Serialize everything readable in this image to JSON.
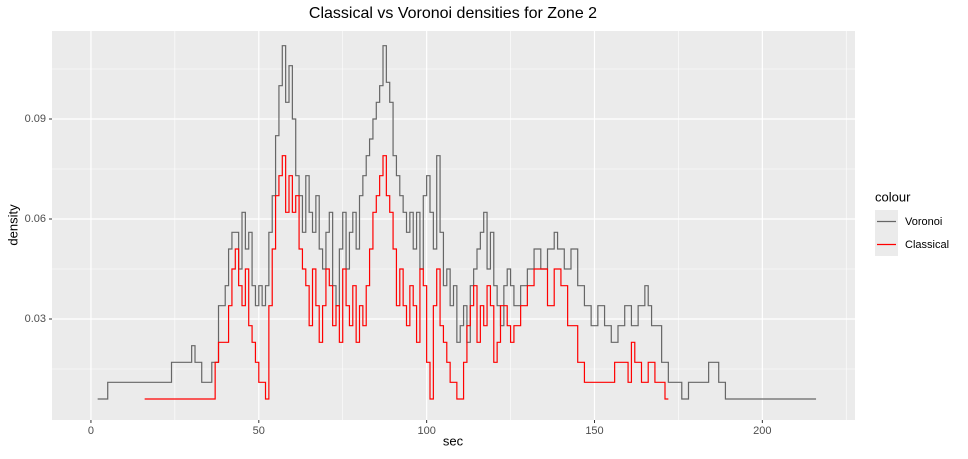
{
  "chart_data": {
    "type": "step",
    "title": "Classical vs Voronoi densities for Zone 2",
    "x_label": "sec",
    "y_label": "density",
    "legend_title": "colour",
    "legend": "right",
    "grid": true,
    "xlim": [
      -11.6,
      227.6
    ],
    "ylim": [
      -0.0003,
      0.1164
    ],
    "xticks": [
      0,
      50,
      100,
      150,
      200
    ],
    "yticks": [
      0.03,
      0.06,
      0.09
    ],
    "series": [
      {
        "name": "Voronoi",
        "color": "#666666",
        "x": [
          2,
          5,
          24,
          30,
          31,
          33,
          36,
          38,
          40,
          41,
          42,
          44,
          45,
          46,
          47,
          48,
          49,
          50,
          51,
          52,
          53,
          54,
          55,
          56,
          57,
          58,
          59,
          60,
          61,
          62,
          63,
          64,
          65,
          66,
          67,
          68,
          69,
          70,
          71,
          72,
          73,
          74,
          75,
          76,
          77,
          78,
          79,
          80,
          81,
          82,
          83,
          84,
          85,
          86,
          87,
          88,
          89,
          90,
          91,
          92,
          93,
          94,
          95,
          96,
          97,
          98,
          99,
          100,
          101,
          102,
          103,
          104,
          105,
          106,
          107,
          108,
          109,
          110,
          111,
          112,
          113,
          114,
          115,
          116,
          117,
          118,
          119,
          120,
          121,
          122,
          123,
          124,
          125,
          126,
          128,
          130,
          132,
          134,
          136,
          138,
          139,
          141,
          143,
          145,
          147,
          149,
          151,
          153,
          155,
          157,
          159,
          161,
          163,
          165,
          166,
          167,
          170,
          172,
          176,
          178,
          184,
          187,
          189,
          216
        ],
        "values": [
          0.006,
          0.011,
          0.017,
          0.022,
          0.017,
          0.011,
          0.017,
          0.034,
          0.04,
          0.051,
          0.056,
          0.045,
          0.062,
          0.051,
          0.056,
          0.04,
          0.034,
          0.04,
          0.034,
          0.04,
          0.056,
          0.067,
          0.085,
          0.1,
          0.112,
          0.095,
          0.106,
          0.09,
          0.073,
          0.067,
          0.056,
          0.073,
          0.062,
          0.056,
          0.067,
          0.051,
          0.045,
          0.056,
          0.062,
          0.04,
          0.034,
          0.051,
          0.062,
          0.045,
          0.056,
          0.062,
          0.051,
          0.067,
          0.073,
          0.079,
          0.084,
          0.09,
          0.095,
          0.1,
          0.112,
          0.101,
          0.095,
          0.079,
          0.073,
          0.067,
          0.062,
          0.056,
          0.062,
          0.051,
          0.062,
          0.045,
          0.067,
          0.073,
          0.062,
          0.051,
          0.079,
          0.056,
          0.04,
          0.045,
          0.034,
          0.04,
          0.023,
          0.028,
          0.034,
          0.023,
          0.04,
          0.045,
          0.051,
          0.056,
          0.062,
          0.045,
          0.056,
          0.04,
          0.034,
          0.028,
          0.04,
          0.045,
          0.04,
          0.034,
          0.04,
          0.045,
          0.051,
          0.045,
          0.051,
          0.056,
          0.051,
          0.045,
          0.051,
          0.04,
          0.034,
          0.028,
          0.034,
          0.028,
          0.023,
          0.028,
          0.034,
          0.028,
          0.034,
          0.04,
          0.034,
          0.028,
          0.017,
          0.011,
          0.006,
          0.011,
          0.017,
          0.011,
          0.006,
          0.006
        ]
      },
      {
        "name": "Classical",
        "color": "#ff0000",
        "x": [
          16,
          37,
          38,
          41,
          42,
          43,
          44,
          45,
          46,
          47,
          48,
          49,
          50,
          52,
          53,
          54,
          55,
          56,
          57,
          58,
          59,
          60,
          61,
          62,
          63,
          64,
          65,
          66,
          67,
          68,
          69,
          70,
          71,
          72,
          73,
          74,
          75,
          76,
          77,
          78,
          79,
          80,
          81,
          82,
          83,
          84,
          85,
          86,
          87,
          88,
          89,
          90,
          91,
          92,
          93,
          94,
          95,
          96,
          97,
          98,
          99,
          100,
          101,
          102,
          103,
          104,
          105,
          106,
          107,
          109,
          111,
          112,
          113,
          114,
          115,
          116,
          117,
          118,
          119,
          120,
          121,
          122,
          124,
          125,
          126,
          128,
          130,
          132,
          134,
          136,
          138,
          140,
          142,
          145,
          147,
          150,
          156,
          160,
          161,
          162,
          164,
          166,
          168,
          171,
          172
        ],
        "values": [
          0.006,
          0.017,
          0.023,
          0.034,
          0.045,
          0.051,
          0.04,
          0.034,
          0.045,
          0.028,
          0.023,
          0.017,
          0.011,
          0.006,
          0.034,
          0.051,
          0.067,
          0.073,
          0.079,
          0.062,
          0.073,
          0.062,
          0.067,
          0.051,
          0.045,
          0.04,
          0.028,
          0.045,
          0.034,
          0.023,
          0.034,
          0.045,
          0.04,
          0.028,
          0.034,
          0.023,
          0.045,
          0.034,
          0.028,
          0.04,
          0.023,
          0.034,
          0.028,
          0.04,
          0.051,
          0.062,
          0.067,
          0.073,
          0.079,
          0.067,
          0.062,
          0.051,
          0.034,
          0.045,
          0.034,
          0.028,
          0.04,
          0.034,
          0.023,
          0.045,
          0.04,
          0.017,
          0.006,
          0.034,
          0.045,
          0.028,
          0.023,
          0.017,
          0.011,
          0.006,
          0.017,
          0.028,
          0.034,
          0.04,
          0.023,
          0.034,
          0.028,
          0.04,
          0.034,
          0.017,
          0.023,
          0.034,
          0.028,
          0.023,
          0.028,
          0.034,
          0.04,
          0.045,
          0.045,
          0.034,
          0.045,
          0.04,
          0.028,
          0.017,
          0.011,
          0.011,
          0.017,
          0.011,
          0.023,
          0.017,
          0.011,
          0.017,
          0.011,
          0.006,
          0.006
        ]
      }
    ]
  }
}
